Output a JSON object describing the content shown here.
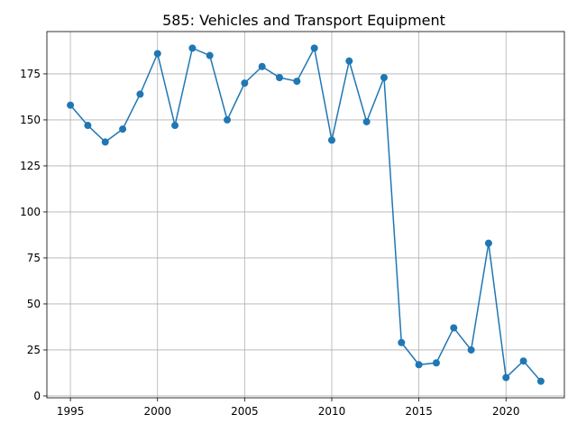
{
  "chart_data": {
    "type": "line",
    "title": "585: Vehicles and Transport Equipment",
    "xlabel": "",
    "ylabel": "",
    "xlim": [
      1993.65,
      2023.35
    ],
    "ylim": [
      -1,
      198
    ],
    "xticks": [
      1995,
      2000,
      2005,
      2010,
      2015,
      2020
    ],
    "yticks": [
      0,
      25,
      50,
      75,
      100,
      125,
      150,
      175
    ],
    "grid": true,
    "color": "#1f77b4",
    "x": [
      1995,
      1996,
      1997,
      1998,
      1999,
      2000,
      2001,
      2002,
      2003,
      2004,
      2005,
      2006,
      2007,
      2008,
      2009,
      2010,
      2011,
      2012,
      2013,
      2014,
      2015,
      2016,
      2017,
      2018,
      2019,
      2020,
      2021,
      2022
    ],
    "values": [
      158,
      147,
      138,
      145,
      164,
      186,
      147,
      189,
      185,
      150,
      170,
      179,
      173,
      171,
      189,
      139,
      182,
      149,
      173,
      29,
      17,
      18,
      37,
      25,
      83,
      10,
      19,
      8
    ]
  }
}
